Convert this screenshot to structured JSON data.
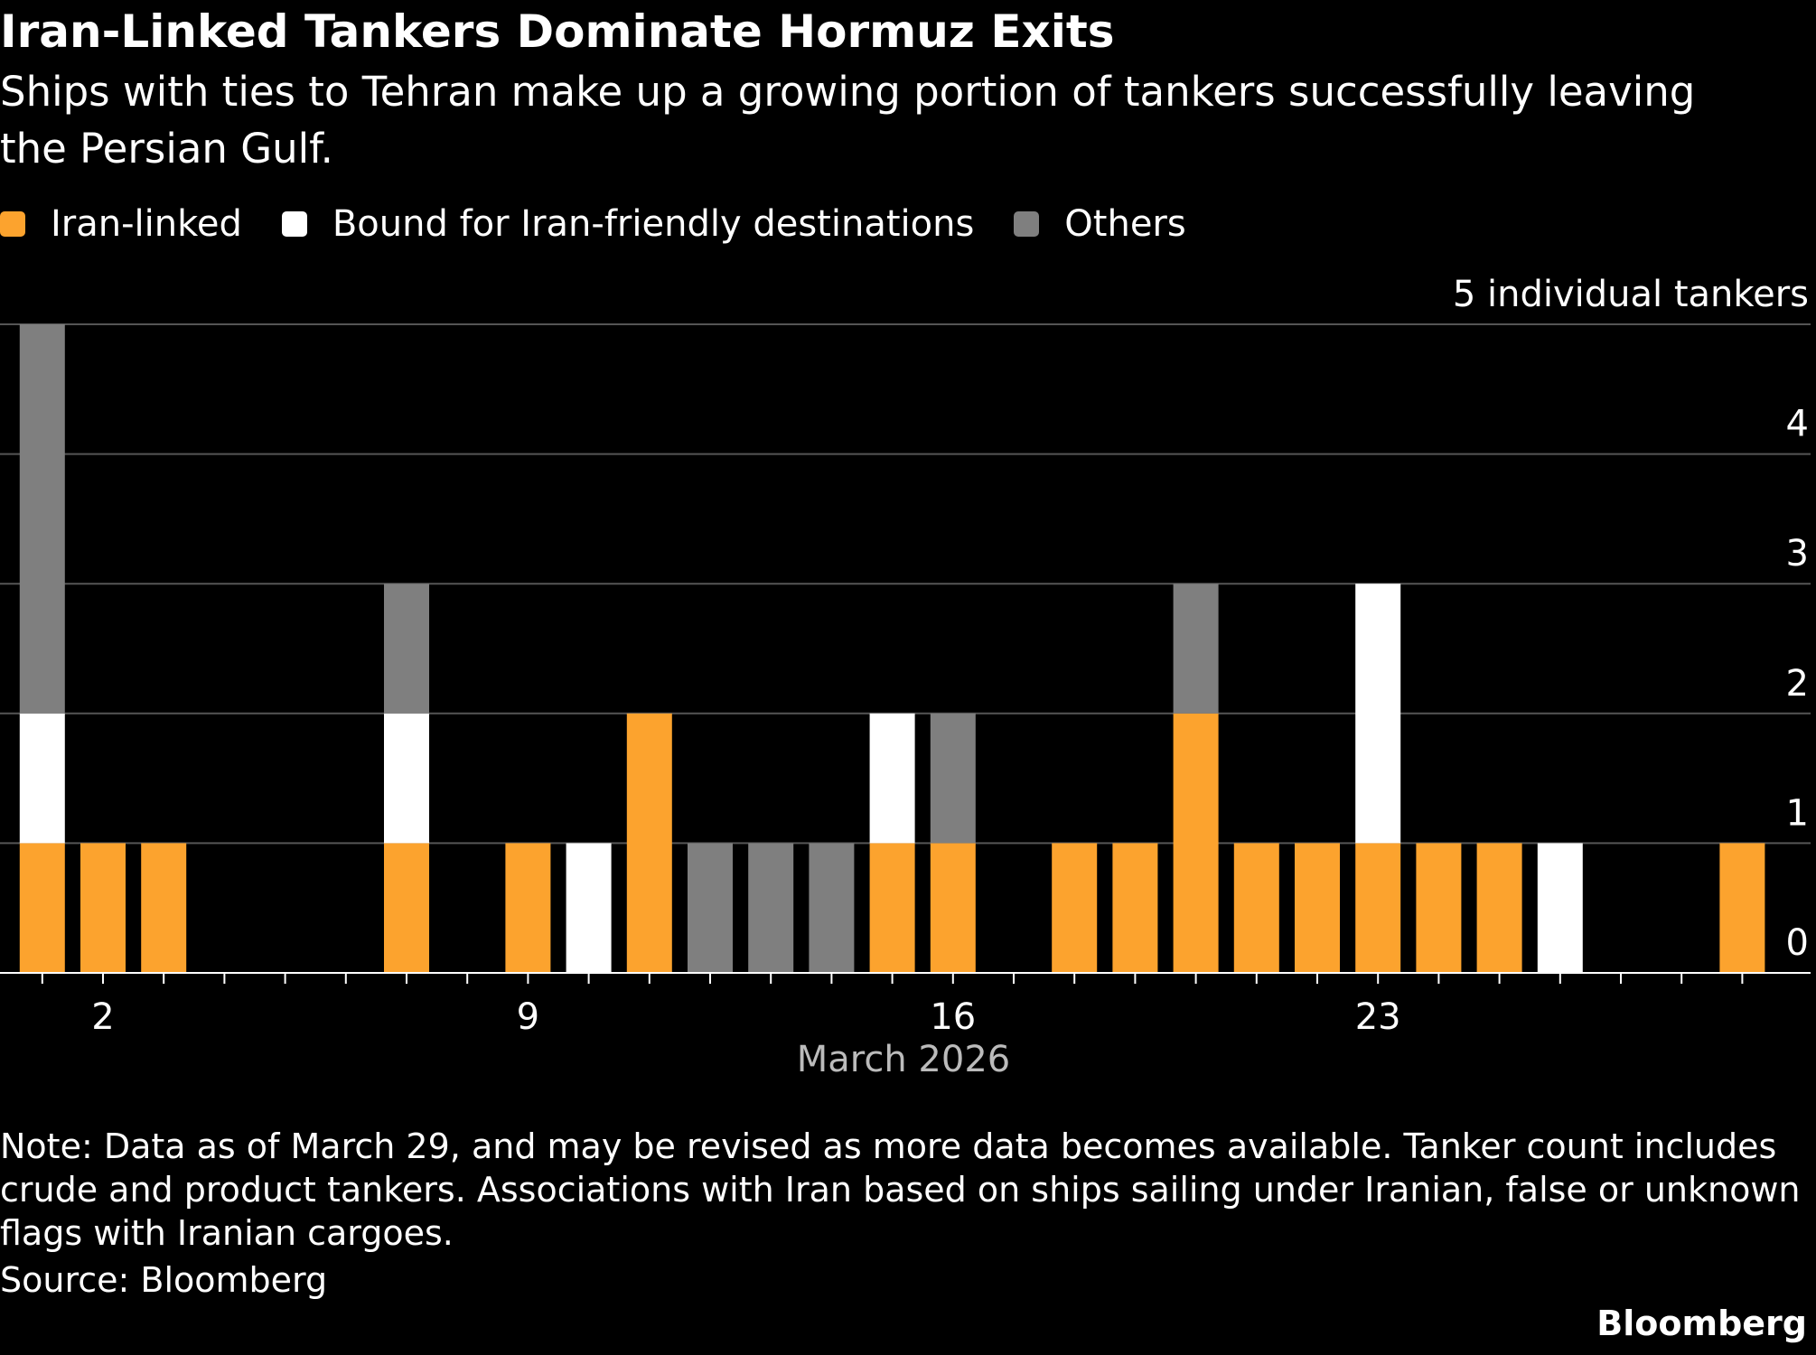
{
  "chart_data": {
    "type": "stacked_bar",
    "title": "Iran-Linked Tankers Dominate Hormuz Exits",
    "subtitle": "Ships with ties to Tehran make up a growing portion of tankers successfully leaving the Persian Gulf.",
    "x_label": "March 2026",
    "categories": [
      null,
      "2",
      null,
      null,
      null,
      null,
      null,
      null,
      "9",
      null,
      null,
      null,
      null,
      null,
      null,
      "16",
      null,
      null,
      null,
      null,
      null,
      null,
      "23",
      null,
      null,
      null,
      null,
      null,
      null
    ],
    "series": [
      {
        "name": "Iran-linked",
        "color": "#fca32e",
        "values": [
          1,
          1,
          1,
          0,
          0,
          0,
          1,
          0,
          1,
          0,
          2,
          0,
          0,
          0,
          1,
          1,
          0,
          1,
          1,
          2,
          1,
          1,
          1,
          1,
          1,
          0,
          0,
          0,
          1
        ]
      },
      {
        "name": "Bound for Iran-friendly destinations",
        "color": "#ffffff",
        "values": [
          1,
          0,
          0,
          0,
          0,
          0,
          1,
          0,
          0,
          1,
          0,
          0,
          0,
          0,
          1,
          0,
          0,
          0,
          0,
          0,
          0,
          0,
          2,
          0,
          0,
          1,
          0,
          0,
          0
        ]
      },
      {
        "name": "Others",
        "color": "#7f7f7f",
        "values": [
          3,
          0,
          0,
          0,
          0,
          0,
          1,
          0,
          0,
          0,
          0,
          1,
          1,
          1,
          0,
          1,
          0,
          0,
          0,
          1,
          0,
          0,
          0,
          0,
          0,
          0,
          0,
          0,
          0
        ]
      }
    ],
    "ylim": [
      0,
      5
    ],
    "yticks": [
      0,
      1,
      2,
      3,
      4,
      {
        "value": 5,
        "label": "5 individual tankers"
      }
    ],
    "grid": true,
    "note": "Note: Data as of March 29, and may be revised as more data becomes available. Tanker count includes crude and product tankers. Associations with Iran based on ships sailing under Iranian, false or unknown flags with Iranian cargoes.",
    "source": "Source: Bloomberg",
    "brand": "Bloomberg"
  }
}
